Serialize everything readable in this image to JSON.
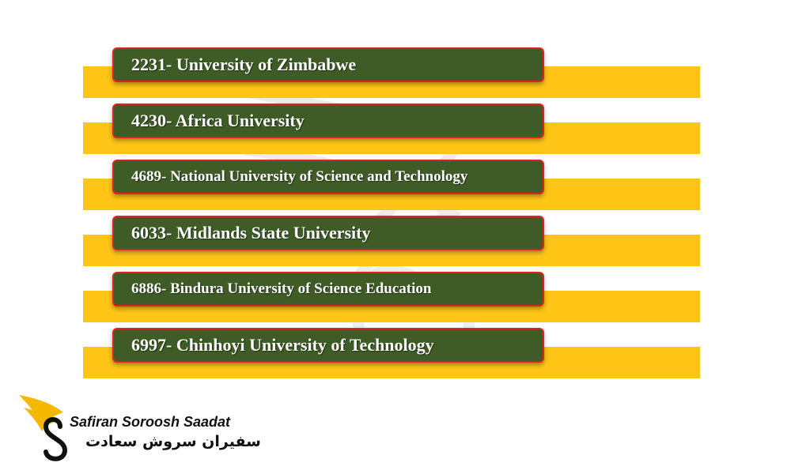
{
  "universities": [
    {
      "label": "2231- University of Zimbabwe"
    },
    {
      "label": "4230- Africa University"
    },
    {
      "label": "4689- National University of Science and Technology"
    },
    {
      "label": "6033- Midlands State University"
    },
    {
      "label": "6886- Bindura University of Science Education"
    },
    {
      "label": "6997- Chinhoyi University of Technology"
    }
  ],
  "brand": {
    "name_en": "Safiran Soroosh Saadat",
    "name_fa": "سفیران سروش سعادت"
  },
  "colors": {
    "stripe": "#fec517",
    "box_fill": "#3f5c27",
    "box_border": "#e02222",
    "text": "#ffffff"
  }
}
